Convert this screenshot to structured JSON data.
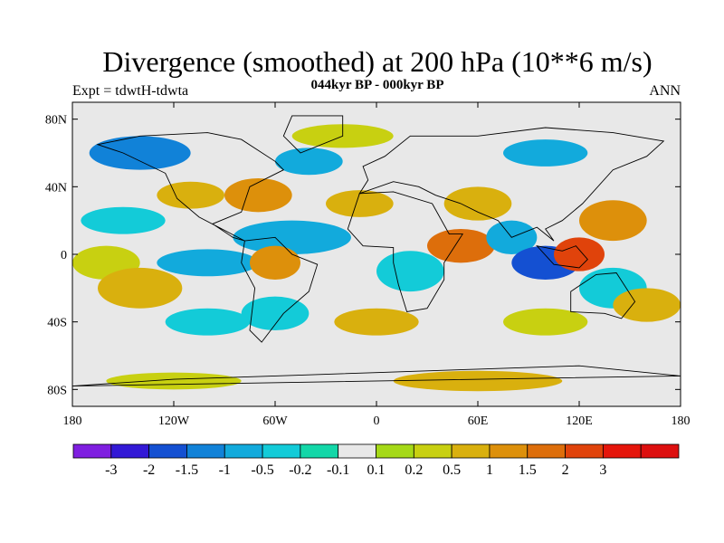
{
  "title": "Divergence (smoothed) at 200 hPa (10**6 m/s)",
  "subtitle": "044kyr BP - 000kyr BP",
  "left_label": "Expt = tdwtH-tdwta",
  "right_label": "ANN",
  "map": {
    "lon_range": [
      -180,
      180
    ],
    "lat_range": [
      -90,
      90
    ],
    "x_ticks": [
      {
        "lon": -180,
        "label": "180"
      },
      {
        "lon": -120,
        "label": "120W"
      },
      {
        "lon": -60,
        "label": "60W"
      },
      {
        "lon": 0,
        "label": "0"
      },
      {
        "lon": 60,
        "label": "60E"
      },
      {
        "lon": 120,
        "label": "120E"
      },
      {
        "lon": 180,
        "label": "180"
      }
    ],
    "y_ticks": [
      {
        "lat": 80,
        "label": "80N"
      },
      {
        "lat": 40,
        "label": "40N"
      },
      {
        "lat": 0,
        "label": "0"
      },
      {
        "lat": -40,
        "label": "40S"
      },
      {
        "lat": -80,
        "label": "80S"
      }
    ],
    "background_color": "#e8e8e8"
  },
  "colorbar": {
    "colors": [
      "#7f1fe0",
      "#3319d6",
      "#1450d2",
      "#1182d8",
      "#12aadc",
      "#13cbd8",
      "#13d7a8",
      "#e8e8e8",
      "#a5d917",
      "#c8d011",
      "#d9b00e",
      "#dd900b",
      "#dd6e0b",
      "#e0430b",
      "#e5150b",
      "#dd0f0f"
    ],
    "labels": [
      "-3",
      "-2",
      "-1.5",
      "-1",
      "-0.5",
      "-0.2",
      "-0.1",
      "0.1",
      "0.2",
      "0.5",
      "1",
      "1.5",
      "2",
      "3"
    ]
  },
  "blobs": [
    {
      "lon": -140,
      "lat": 60,
      "rx": 30,
      "ry": 10,
      "level": 3
    },
    {
      "lon": -110,
      "lat": 35,
      "rx": 20,
      "ry": 8,
      "level": 10
    },
    {
      "lon": -70,
      "lat": 35,
      "rx": 20,
      "ry": 10,
      "level": 11
    },
    {
      "lon": -50,
      "lat": 10,
      "rx": 35,
      "ry": 10,
      "level": 4
    },
    {
      "lon": -40,
      "lat": 55,
      "rx": 20,
      "ry": 8,
      "level": 4
    },
    {
      "lon": -150,
      "lat": 20,
      "rx": 25,
      "ry": 8,
      "level": 5
    },
    {
      "lon": -160,
      "lat": -5,
      "rx": 20,
      "ry": 10,
      "level": 9
    },
    {
      "lon": -140,
      "lat": -20,
      "rx": 25,
      "ry": 12,
      "level": 10
    },
    {
      "lon": -100,
      "lat": -5,
      "rx": 30,
      "ry": 8,
      "level": 4
    },
    {
      "lon": -60,
      "lat": -5,
      "rx": 15,
      "ry": 10,
      "level": 11
    },
    {
      "lon": -60,
      "lat": -35,
      "rx": 20,
      "ry": 10,
      "level": 5
    },
    {
      "lon": -10,
      "lat": 30,
      "rx": 20,
      "ry": 8,
      "level": 10
    },
    {
      "lon": 20,
      "lat": -10,
      "rx": 20,
      "ry": 12,
      "level": 5
    },
    {
      "lon": 50,
      "lat": 5,
      "rx": 20,
      "ry": 10,
      "level": 12
    },
    {
      "lon": 60,
      "lat": 30,
      "rx": 20,
      "ry": 10,
      "level": 10
    },
    {
      "lon": 80,
      "lat": 10,
      "rx": 15,
      "ry": 10,
      "level": 4
    },
    {
      "lon": 100,
      "lat": -5,
      "rx": 20,
      "ry": 10,
      "level": 2
    },
    {
      "lon": 120,
      "lat": 0,
      "rx": 15,
      "ry": 10,
      "level": 13
    },
    {
      "lon": 140,
      "lat": 20,
      "rx": 20,
      "ry": 12,
      "level": 11
    },
    {
      "lon": 140,
      "lat": -20,
      "rx": 20,
      "ry": 12,
      "level": 5
    },
    {
      "lon": 160,
      "lat": -30,
      "rx": 20,
      "ry": 10,
      "level": 10
    },
    {
      "lon": 0,
      "lat": -40,
      "rx": 25,
      "ry": 8,
      "level": 10
    },
    {
      "lon": 100,
      "lat": -40,
      "rx": 25,
      "ry": 8,
      "level": 9
    },
    {
      "lon": -100,
      "lat": -40,
      "rx": 25,
      "ry": 8,
      "level": 5
    },
    {
      "lon": -120,
      "lat": -75,
      "rx": 40,
      "ry": 5,
      "level": 9
    },
    {
      "lon": 60,
      "lat": -75,
      "rx": 50,
      "ry": 6,
      "level": 10
    },
    {
      "lon": -20,
      "lat": 70,
      "rx": 30,
      "ry": 7,
      "level": 9
    },
    {
      "lon": 100,
      "lat": 60,
      "rx": 25,
      "ry": 8,
      "level": 4
    }
  ]
}
